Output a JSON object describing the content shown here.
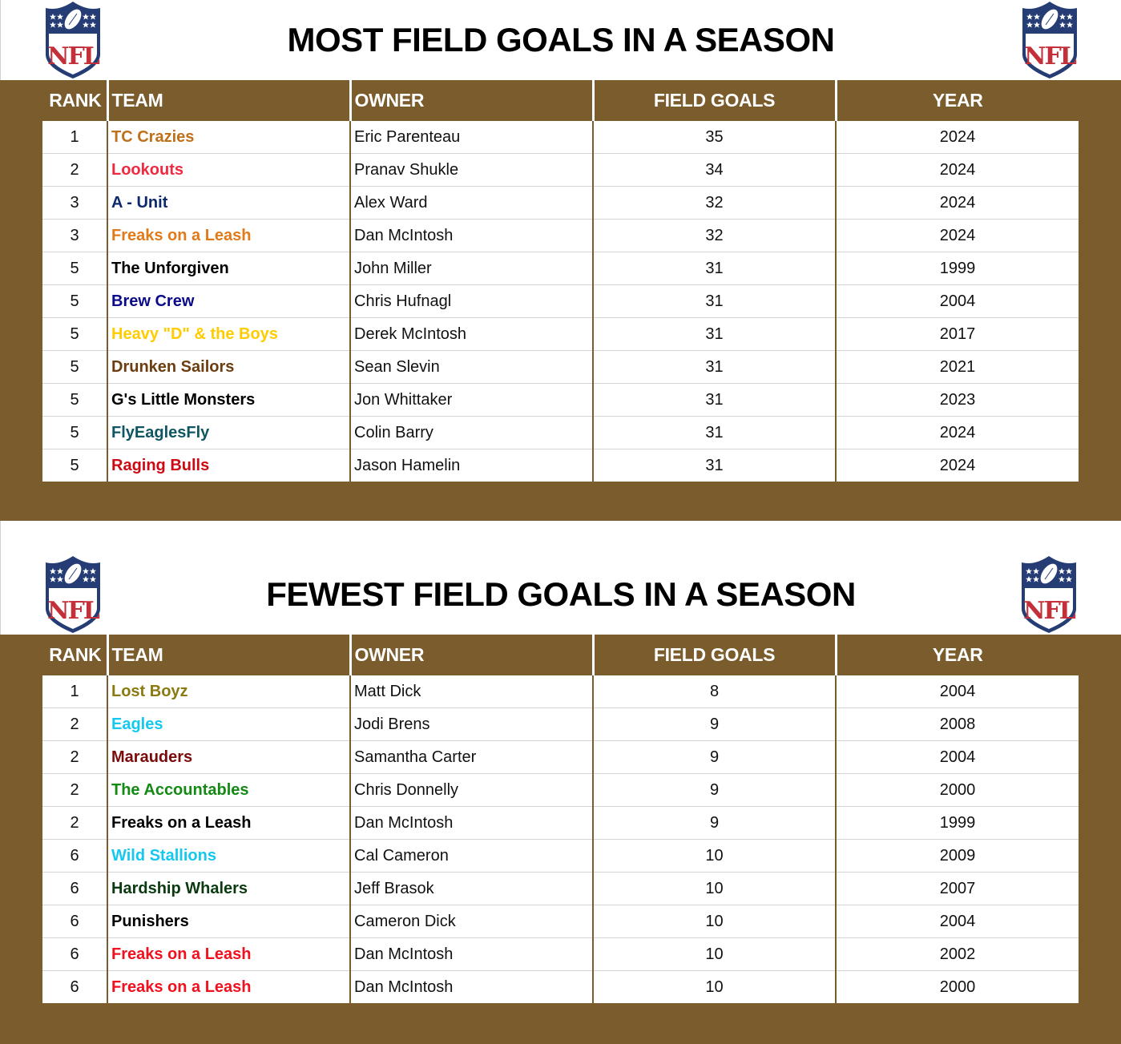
{
  "most": {
    "title": "MOST FIELD GOALS IN A SEASON",
    "headers": {
      "rank": "RANK",
      "team": "TEAM",
      "owner": "OWNER",
      "field_goals": "FIELD GOALS",
      "year": "YEAR"
    },
    "rows": [
      {
        "rank": "1",
        "team": "TC Crazies",
        "team_color": "#c0701a",
        "owner": "Eric Parenteau",
        "field_goals": "35",
        "year": "2024"
      },
      {
        "rank": "2",
        "team": "Lookouts",
        "team_color": "#f02840",
        "owner": "Pranav Shukle",
        "field_goals": "34",
        "year": "2024"
      },
      {
        "rank": "3",
        "team": "A - Unit",
        "team_color": "#0b2a6b",
        "owner": "Alex Ward",
        "field_goals": "32",
        "year": "2024"
      },
      {
        "rank": "3",
        "team": "Freaks on a Leash",
        "team_color": "#e07a1a",
        "owner": "Dan McIntosh",
        "field_goals": "32",
        "year": "2024"
      },
      {
        "rank": "5",
        "team": "The Unforgiven",
        "team_color": "#000000",
        "owner": "John Miller",
        "field_goals": "31",
        "year": "1999"
      },
      {
        "rank": "5",
        "team": "Brew Crew",
        "team_color": "#0a0a8a",
        "owner": "Chris Hufnagl",
        "field_goals": "31",
        "year": "2004"
      },
      {
        "rank": "5",
        "team": "Heavy \"D\" & the Boys",
        "team_color": "#ffcc00",
        "owner": "Derek McIntosh",
        "field_goals": "31",
        "year": "2017"
      },
      {
        "rank": "5",
        "team": "Drunken Sailors",
        "team_color": "#6b3d10",
        "owner": "Sean Slevin",
        "field_goals": "31",
        "year": "2021"
      },
      {
        "rank": "5",
        "team": "G's Little Monsters",
        "team_color": "#000000",
        "owner": "Jon Whittaker",
        "field_goals": "31",
        "year": "2023"
      },
      {
        "rank": "5",
        "team": "FlyEaglesFly",
        "team_color": "#0e5662",
        "owner": "Colin Barry",
        "field_goals": "31",
        "year": "2024"
      },
      {
        "rank": "5",
        "team": "Raging Bulls",
        "team_color": "#cc0a14",
        "owner": "Jason Hamelin",
        "field_goals": "31",
        "year": "2024"
      }
    ]
  },
  "fewest": {
    "title": "FEWEST FIELD GOALS IN A SEASON",
    "headers": {
      "rank": "RANK",
      "team": "TEAM",
      "owner": "OWNER",
      "field_goals": "FIELD GOALS",
      "year": "YEAR"
    },
    "rows": [
      {
        "rank": "1",
        "team": "Lost Boyz",
        "team_color": "#8a7a10",
        "owner": "Matt Dick",
        "field_goals": "8",
        "year": "2004"
      },
      {
        "rank": "2",
        "team": "Eagles",
        "team_color": "#14c8f0",
        "owner": "Jodi Brens",
        "field_goals": "9",
        "year": "2008"
      },
      {
        "rank": "2",
        "team": "Marauders",
        "team_color": "#7a0a0a",
        "owner": "Samantha Carter",
        "field_goals": "9",
        "year": "2004"
      },
      {
        "rank": "2",
        "team": "The Accountables",
        "team_color": "#138a13",
        "owner": "Chris Donnelly",
        "field_goals": "9",
        "year": "2000"
      },
      {
        "rank": "2",
        "team": "Freaks on a Leash",
        "team_color": "#000000",
        "owner": "Dan McIntosh",
        "field_goals": "9",
        "year": "1999"
      },
      {
        "rank": "6",
        "team": "Wild Stallions",
        "team_color": "#14c8f0",
        "owner": "Cal Cameron",
        "field_goals": "10",
        "year": "2009"
      },
      {
        "rank": "6",
        "team": "Hardship Whalers",
        "team_color": "#0a3a10",
        "owner": "Jeff Brasok",
        "field_goals": "10",
        "year": "2007"
      },
      {
        "rank": "6",
        "team": "Punishers",
        "team_color": "#000000",
        "owner": "Cameron Dick",
        "field_goals": "10",
        "year": "2004"
      },
      {
        "rank": "6",
        "team": "Freaks on a Leash",
        "team_color": "#f0101e",
        "owner": "Dan McIntosh",
        "field_goals": "10",
        "year": "2002"
      },
      {
        "rank": "6",
        "team": "Freaks on a Leash",
        "team_color": "#f0101e",
        "owner": "Dan McIntosh",
        "field_goals": "10",
        "year": "2000"
      }
    ]
  },
  "logo": {
    "icon": "nfl-shield-logo",
    "text": "NFL"
  },
  "colors": {
    "header_brown": "#7b5c2d",
    "logo_blue": "#253d74",
    "logo_red": "#c3303a"
  }
}
